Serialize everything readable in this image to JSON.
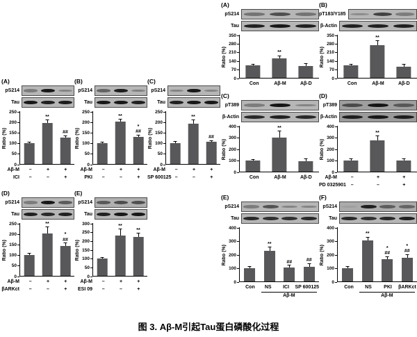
{
  "caption": "图 3. Aβ-M引起Tau蛋白磷酸化过程",
  "colors": {
    "bar": "#58585a",
    "blot_background": "#b6b6b6",
    "band": "#101010",
    "axis": "#000000"
  },
  "chart_data": [
    {
      "id": "LA",
      "type": "bar",
      "panel_label": "(A)",
      "blots": [
        {
          "name": "pS214",
          "bands": [
            0.35,
            0.95,
            0.3
          ]
        },
        {
          "name": "Tau",
          "bands": [
            0.95,
            0.9,
            0.92
          ]
        }
      ],
      "ylabel": "Ratio (%)",
      "ylim": [
        0,
        250
      ],
      "ystep": 50,
      "values": [
        100,
        195,
        125
      ],
      "errors": [
        3,
        12,
        8
      ],
      "annotations": [
        "",
        "**",
        "##"
      ],
      "x_rows": [
        {
          "label": "Aβ-M",
          "signs": [
            "–",
            "+",
            "+"
          ]
        },
        {
          "label": "ICI",
          "signs": [
            "–",
            "–",
            "+"
          ]
        }
      ]
    },
    {
      "id": "LB",
      "type": "bar",
      "panel_label": "(B)",
      "blots": [
        {
          "name": "pS214",
          "bands": [
            0.5,
            0.92,
            0.32
          ]
        },
        {
          "name": "Tau",
          "bands": [
            0.95,
            0.95,
            0.9
          ]
        }
      ],
      "ylabel": "Ratio (%)",
      "ylim": [
        0,
        250
      ],
      "ystep": 50,
      "values": [
        100,
        200,
        128
      ],
      "errors": [
        3,
        10,
        8
      ],
      "annotations": [
        "",
        "**",
        "*\n##"
      ],
      "x_rows": [
        {
          "label": "Aβ-M",
          "signs": [
            "–",
            "+",
            "+"
          ]
        },
        {
          "label": "PKI",
          "signs": [
            "–",
            "–",
            "+"
          ]
        }
      ]
    },
    {
      "id": "LC",
      "type": "bar",
      "panel_label": "(C)",
      "blots": [
        {
          "name": "pS214",
          "bands": [
            0.3,
            0.95,
            0.3
          ]
        },
        {
          "name": "Tau",
          "bands": [
            0.9,
            0.95,
            0.95
          ]
        }
      ],
      "ylabel": "Ratio (%)",
      "ylim": [
        0,
        250
      ],
      "ystep": 50,
      "values": [
        100,
        192,
        105
      ],
      "errors": [
        4,
        15,
        5
      ],
      "annotations": [
        "",
        "**",
        "##"
      ],
      "x_rows": [
        {
          "label": "Aβ-M",
          "signs": [
            "–",
            "+",
            "+"
          ]
        },
        {
          "label": "SP 600125",
          "signs": [
            "–",
            "–",
            "+"
          ]
        }
      ]
    },
    {
      "id": "LD",
      "type": "bar",
      "panel_label": "(D)",
      "blots": [
        {
          "name": "pS214",
          "bands": [
            0.35,
            0.95,
            0.55
          ]
        },
        {
          "name": "Tau",
          "bands": [
            0.9,
            0.85,
            0.9
          ]
        }
      ],
      "ylabel": "Ratio (%)",
      "ylim": [
        0,
        250
      ],
      "ystep": 50,
      "values": [
        100,
        200,
        143
      ],
      "errors": [
        4,
        30,
        12
      ],
      "annotations": [
        "",
        "**",
        "*\n##"
      ],
      "x_rows": [
        {
          "label": "Aβ-M",
          "signs": [
            "–",
            "+",
            "+"
          ]
        },
        {
          "label": "βARKct",
          "signs": [
            "–",
            "–",
            "+"
          ]
        }
      ]
    },
    {
      "id": "LE",
      "type": "bar",
      "panel_label": "(E)",
      "blots": [
        {
          "name": "pS214",
          "bands": [
            0.55,
            0.62,
            0.6
          ],
          "bg": "#b0b0b0"
        },
        {
          "name": "Tau",
          "bands": [
            0.9,
            0.95,
            0.95
          ]
        }
      ],
      "ylabel": "Ratio (%)",
      "ylim": [
        0,
        300
      ],
      "ystep": 50,
      "values": [
        100,
        228,
        220
      ],
      "errors": [
        3,
        35,
        20
      ],
      "annotations": [
        "",
        "**",
        "**"
      ],
      "x_rows": [
        {
          "label": "Aβ-M",
          "signs": [
            "–",
            "+",
            "+"
          ]
        },
        {
          "label": "ESI 09",
          "signs": [
            "–",
            "–",
            "+"
          ]
        }
      ]
    },
    {
      "id": "RA",
      "type": "bar",
      "panel_label": "(A)",
      "blots": [
        {
          "name": "pS214",
          "bands": [
            0.4,
            0.62,
            0.4
          ]
        },
        {
          "name": "Tau",
          "bands": [
            0.9,
            0.95,
            0.9
          ]
        }
      ],
      "ylabel": "Ratio (%)",
      "ylim": [
        0,
        350
      ],
      "ystep": 70,
      "values": [
        100,
        158,
        97
      ],
      "errors": [
        5,
        18,
        15
      ],
      "annotations": [
        "",
        "**",
        ""
      ],
      "categories": [
        "Con",
        "Aβ-M",
        "Aβ-D"
      ]
    },
    {
      "id": "RB",
      "type": "bar",
      "panel_label": "(B)",
      "blots": [
        {
          "name": "pT183/Y185",
          "bands": [
            0.25,
            0.7,
            0.35
          ]
        },
        {
          "name": "β-Actin",
          "bands": [
            0.9,
            0.9,
            0.9
          ]
        }
      ],
      "ylabel": "Ratio (%)",
      "ylim": [
        0,
        350
      ],
      "ystep": 70,
      "values": [
        100,
        265,
        88
      ],
      "errors": [
        8,
        35,
        20
      ],
      "annotations": [
        "",
        "**",
        ""
      ],
      "categories": [
        "Con",
        "Aβ-M",
        "Aβ-D"
      ]
    },
    {
      "id": "RC",
      "type": "bar",
      "panel_label": "(C)",
      "blots": [
        {
          "name": "pT389",
          "bands": [
            0.35,
            0.97,
            0.3
          ]
        },
        {
          "name": "β-Actin",
          "bands": [
            0.85,
            0.9,
            0.85
          ]
        }
      ],
      "ylabel": "Ratio (%)",
      "ylim": [
        0,
        400
      ],
      "ystep": 100,
      "values": [
        100,
        295,
        90
      ],
      "errors": [
        6,
        55,
        20
      ],
      "annotations": [
        "",
        "**",
        ""
      ],
      "categories": [
        "Con",
        "Aβ-M",
        "Aβ-D"
      ]
    },
    {
      "id": "RD",
      "type": "bar",
      "panel_label": "(D)",
      "blots": [
        {
          "name": "pT389",
          "bands": [
            0.6,
            0.97,
            0.5
          ],
          "bg": "#9e9e9e"
        },
        {
          "name": "β-Actin",
          "bands": [
            0.9,
            0.95,
            0.9
          ],
          "bg": "#9a9a9a"
        }
      ],
      "ylabel": "Ratio (%)",
      "ylim": [
        0,
        400
      ],
      "ystep": 100,
      "values": [
        100,
        270,
        95
      ],
      "errors": [
        8,
        40,
        12
      ],
      "annotations": [
        "",
        "**",
        ""
      ],
      "x_rows": [
        {
          "label": "Aβ-M",
          "signs": [
            "–",
            "+",
            "+"
          ]
        },
        {
          "label": "PD 0325901",
          "signs": [
            "–",
            "–",
            "+"
          ]
        }
      ]
    },
    {
      "id": "RE",
      "type": "bar",
      "panel_label": "(E)",
      "blots": [
        {
          "name": "pS214",
          "bands": [
            0.35,
            0.6,
            0.3,
            0.3
          ]
        },
        {
          "name": "Tau",
          "bands": [
            0.85,
            0.8,
            0.8,
            0.85
          ]
        }
      ],
      "ylabel": "Ratio (%)",
      "ylim": [
        0,
        400
      ],
      "ystep": 100,
      "values": [
        100,
        225,
        105,
        110
      ],
      "errors": [
        6,
        25,
        12,
        20
      ],
      "annotations": [
        "",
        "**",
        "##",
        "##"
      ],
      "categories": [
        "Con",
        "NS",
        "ICI",
        "SP 600125"
      ],
      "group": {
        "label": "Aβ-M",
        "from": 1
      }
    },
    {
      "id": "RF",
      "type": "bar",
      "panel_label": "(F)",
      "blots": [
        {
          "name": "pS214",
          "bands": [
            0.08,
            0.9,
            0.5,
            0.45
          ],
          "bg": "#ababab"
        },
        {
          "name": "Tau",
          "bands": [
            0.85,
            0.8,
            0.85,
            0.9
          ]
        }
      ],
      "ylabel": "Ratio (%)",
      "ylim": [
        0,
        400
      ],
      "ystep": 100,
      "values": [
        100,
        305,
        163,
        172
      ],
      "errors": [
        8,
        20,
        18,
        25
      ],
      "annotations": [
        "",
        "**",
        "*\n##",
        "*\n##"
      ],
      "categories": [
        "Con",
        "NS",
        "PKI",
        "βARKct"
      ],
      "group": {
        "label": "Aβ-M",
        "from": 1
      }
    }
  ],
  "layout_note": {
    "left_rows": [
      [
        "LA",
        "LB",
        "LC"
      ],
      [
        "LD",
        "LE"
      ]
    ],
    "right_rows": [
      [
        "RA",
        "RB"
      ],
      [
        "RC",
        "RD"
      ],
      [
        "RE",
        "RF"
      ]
    ]
  }
}
